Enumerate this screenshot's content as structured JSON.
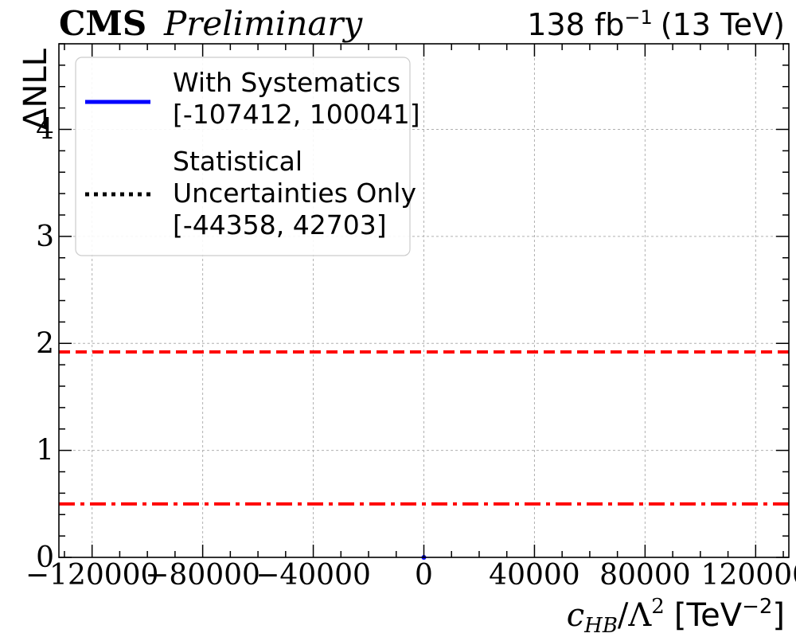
{
  "header": {
    "experiment": "CMS",
    "status": "Preliminary",
    "lumi_label": "138 fb",
    "lumi_exponent": "−1",
    "energy_label": "(13 TeV)"
  },
  "axes": {
    "xlabel_var": "c",
    "xlabel_sub": "HB",
    "xlabel_div": "/Λ",
    "xlabel_pow": "2",
    "xlabel_unit": "[TeV",
    "xlabel_unit_pow": "−2",
    "xlabel_close": "]",
    "ylabel": "ΔNLL"
  },
  "legend": {
    "items": [
      {
        "lines": [
          "With Systematics",
          "[-107412, 100041]"
        ],
        "style": "solid",
        "color": "#0000ff"
      },
      {
        "lines": [
          "Statistical",
          "Uncertainties Only",
          "[-44358, 42703]"
        ],
        "style": "dotted",
        "color": "#000000"
      }
    ]
  },
  "chart_data": {
    "type": "line",
    "title": "",
    "xlabel": "c_HB/Λ^2 [TeV^-2]",
    "ylabel": "ΔNLL",
    "xlim": [
      -132000,
      132000
    ],
    "ylim": [
      0,
      4.8
    ],
    "xticks": [
      -120000,
      -80000,
      -40000,
      0,
      40000,
      80000,
      120000
    ],
    "xtick_labels": [
      "−120000",
      "−80000",
      "−40000",
      "0",
      "40000",
      "80000",
      "120000"
    ],
    "yticks": [
      0,
      1,
      2,
      3,
      4
    ],
    "ytick_labels": [
      "0",
      "1",
      "2",
      "3",
      "4"
    ],
    "grid": true,
    "legend_position": "top-left",
    "series": [
      {
        "name": "With Systematics",
        "style": "solid",
        "color": "#0000ff",
        "points": [
          [
            0,
            0
          ]
        ]
      },
      {
        "name": "Statistical Uncertainties Only",
        "style": "dotted",
        "color": "#000000",
        "points": []
      }
    ],
    "reference_lines": [
      {
        "y": 1.92,
        "style": "dashed",
        "color": "#ff0000"
      },
      {
        "y": 0.5,
        "style": "dashdot",
        "color": "#ff0000"
      }
    ]
  }
}
